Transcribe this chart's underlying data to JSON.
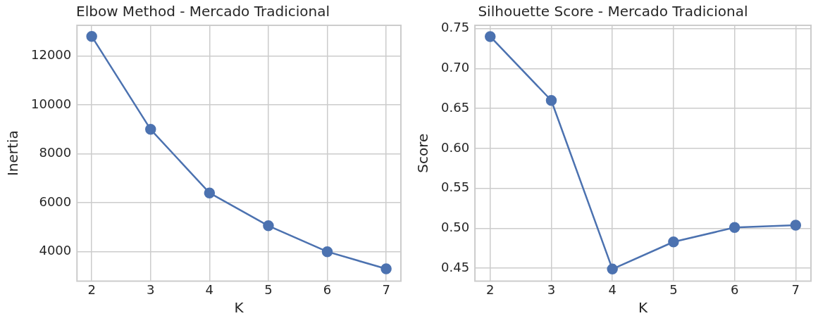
{
  "chart_data": [
    {
      "type": "line",
      "title": "Elbow Method - Mercado Tradicional",
      "xlabel": "K",
      "ylabel": "Inertia",
      "x": [
        2,
        3,
        4,
        5,
        6,
        7
      ],
      "series": [
        {
          "color": "#4c72b0",
          "values": [
            12800,
            9000,
            6400,
            5060,
            4000,
            3300
          ]
        }
      ],
      "xlim": [
        1.75,
        7.25
      ],
      "xticks": [
        2,
        3,
        4,
        5,
        6,
        7
      ],
      "ylim": [
        2800,
        13250
      ],
      "yticks": [
        4000,
        6000,
        8000,
        10000,
        12000
      ],
      "grid": true,
      "legend": false,
      "marker": "circle",
      "line_style": "solid"
    },
    {
      "type": "line",
      "title": "Silhouette Score - Mercado Tradicional",
      "xlabel": "K",
      "ylabel": "Score",
      "x": [
        2,
        3,
        4,
        5,
        6,
        7
      ],
      "series": [
        {
          "color": "#4c72b0",
          "values": [
            0.74,
            0.66,
            0.449,
            0.483,
            0.501,
            0.504
          ]
        }
      ],
      "xlim": [
        1.75,
        7.25
      ],
      "xticks": [
        2,
        3,
        4,
        5,
        6,
        7
      ],
      "ylim": [
        0.434,
        0.754
      ],
      "yticks": [
        0.45,
        {
          "value": 0.5,
          "label": "0.50"
        },
        0.55,
        {
          "value": 0.6,
          "label": "0.60"
        },
        0.65,
        {
          "value": 0.7,
          "label": "0.70"
        },
        0.75
      ],
      "grid": true,
      "legend": false,
      "marker": "circle",
      "line_style": "solid"
    }
  ]
}
